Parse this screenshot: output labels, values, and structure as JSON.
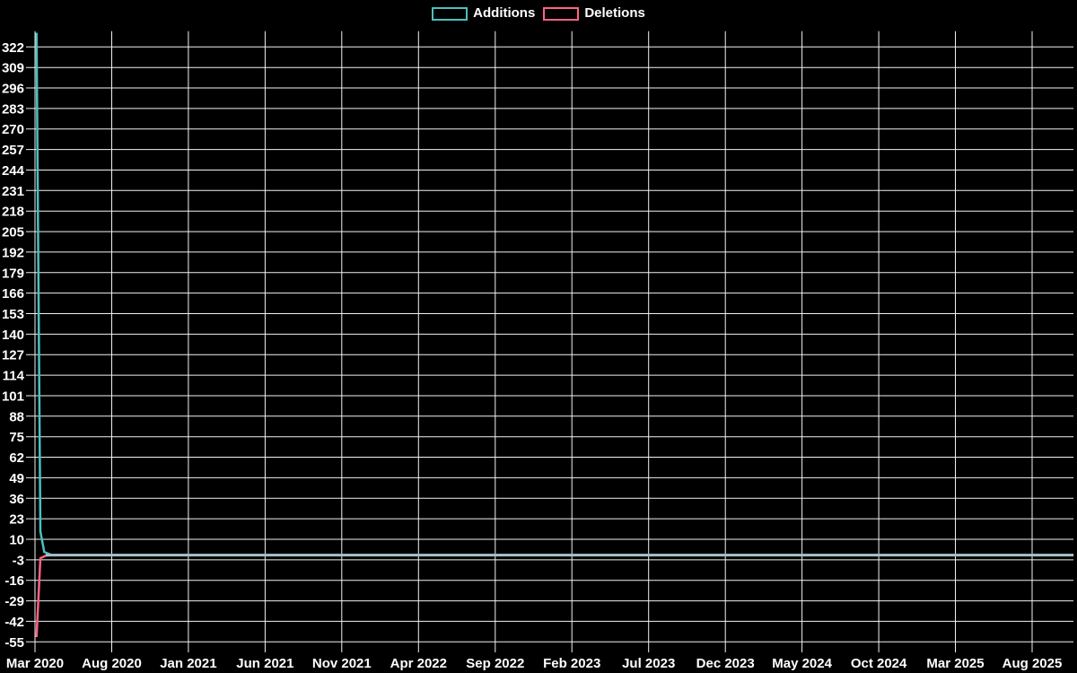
{
  "legend": {
    "items": [
      {
        "label": "Additions",
        "color": "#4bc0c0"
      },
      {
        "label": "Deletions",
        "color": "#ff6384"
      }
    ]
  },
  "colors": {
    "background": "#000000",
    "grid": "#f2f2f2",
    "text": "#ffffff",
    "additions": "#4bc0c0",
    "deletions": "#ff6384",
    "overlap_line": "#a4bfc9"
  },
  "chart_data": {
    "type": "line",
    "title": "",
    "grid": true,
    "legend_position": "top-center",
    "background": "#000000",
    "y_axis": {
      "ticks": [
        322,
        309,
        296,
        283,
        270,
        257,
        244,
        231,
        218,
        205,
        192,
        179,
        166,
        153,
        140,
        127,
        114,
        101,
        88,
        75,
        62,
        49,
        36,
        23,
        10,
        -3,
        -16,
        -29,
        -42,
        -55
      ],
      "tick_step": 13,
      "ylim": [
        -55,
        332
      ]
    },
    "x_axis": {
      "tick_labels": [
        "Mar 2020",
        "Aug 2020",
        "Jan 2021",
        "Jun 2021",
        "Nov 2021",
        "Apr 2022",
        "Sep 2022",
        "Feb 2023",
        "Jul 2023",
        "Dec 2023",
        "May 2024",
        "Oct 2024",
        "Mar 2025",
        "Aug 2025"
      ],
      "tick_interval_months": 5,
      "x_range_months": [
        0,
        67.7
      ]
    },
    "series": [
      {
        "name": "Additions",
        "color": "#4bc0c0",
        "points": [
          [
            0.1,
            331
          ],
          [
            0.35,
            15
          ],
          [
            0.6,
            2
          ],
          [
            1.1,
            0
          ],
          [
            67.7,
            0
          ]
        ]
      },
      {
        "name": "Deletions",
        "color": "#ff6384",
        "points": [
          [
            0.1,
            -52
          ],
          [
            0.35,
            -2
          ],
          [
            0.7,
            -0.3
          ],
          [
            1.1,
            0
          ],
          [
            67.7,
            0
          ]
        ]
      }
    ],
    "overlap": {
      "from_month": 0.7,
      "value": 0,
      "color": "#a4bfc9"
    }
  }
}
